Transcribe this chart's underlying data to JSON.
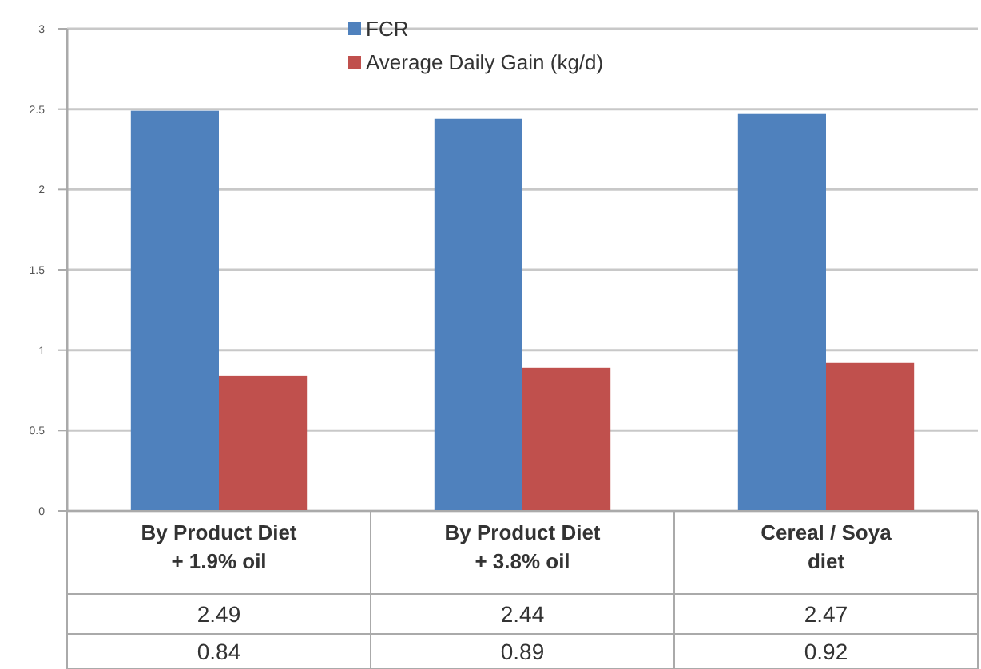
{
  "chart_data": {
    "type": "bar",
    "categories": [
      "By Product Diet\n+ 1.9% oil",
      "By Product Diet\n+ 3.8% oil",
      "Cereal / Soya\ndiet"
    ],
    "series": [
      {
        "name": "FCR",
        "color": "#4f81bd",
        "values": [
          2.49,
          2.44,
          2.47
        ]
      },
      {
        "name": "Average Daily Gain (kg/d)",
        "color": "#c0504d",
        "values": [
          0.84,
          0.89,
          0.92
        ]
      }
    ],
    "ylim": [
      0,
      3
    ],
    "yticks": [
      0,
      0.5,
      1,
      1.5,
      2,
      2.5,
      3
    ],
    "grid": "y",
    "legend": "top",
    "data_labels": true
  }
}
